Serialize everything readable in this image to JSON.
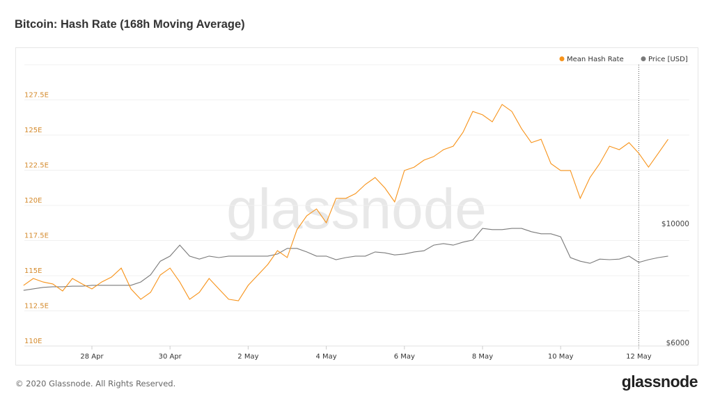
{
  "title": "Bitcoin: Hash Rate (168h Moving Average)",
  "footer": "© 2020 Glassnode. All Rights Reserved.",
  "logo": "glassnode",
  "watermark": "glassnode",
  "colors": {
    "hash_rate": "#f7931a",
    "price": "#7a7a7a",
    "left_axis_text": "#d4892a",
    "grid": "#efefef"
  },
  "chart_data": {
    "type": "line",
    "title": "Bitcoin: Hash Rate (168h Moving Average)",
    "legend": {
      "placement": "top-right",
      "entries": [
        "Mean Hash Rate",
        "Price [USD]"
      ]
    },
    "grid": true,
    "x_start": "2020-04-26T06:00",
    "x_step_hours": 6,
    "x_ticks": [
      "28 Apr",
      "30 Apr",
      "2 May",
      "4 May",
      "6 May",
      "8 May",
      "10 May",
      "12 May"
    ],
    "x_tick_dates": [
      "2020-04-28",
      "2020-04-30",
      "2020-05-02",
      "2020-05-04",
      "2020-05-06",
      "2020-05-08",
      "2020-05-10",
      "2020-05-12"
    ],
    "y_left": {
      "unit": "E",
      "range": [
        110,
        130
      ],
      "ticks": [
        110,
        112.5,
        115,
        117.5,
        120,
        122.5,
        125,
        127.5
      ],
      "tick_labels": [
        "110E",
        "112.5E",
        "115E",
        "117.5E",
        "120E",
        "122.5E",
        "125E",
        "127.5E"
      ]
    },
    "y_right": {
      "unit": "USD",
      "range": [
        6000,
        10000
      ],
      "tick_labels": [
        "$6000",
        "$10000"
      ],
      "ticks": [
        6000,
        10000
      ]
    },
    "crosshair_date": "2020-05-12T00:00",
    "series": [
      {
        "name": "Mean Hash Rate",
        "axis": "left",
        "values": [
          114.31,
          114.8,
          114.55,
          114.41,
          113.91,
          114.8,
          114.41,
          114.06,
          114.55,
          114.9,
          115.54,
          114.06,
          113.32,
          113.81,
          115.05,
          115.54,
          114.55,
          113.32,
          113.81,
          114.8,
          114.06,
          113.32,
          113.22,
          114.31,
          115.05,
          115.79,
          116.78,
          116.29,
          118.27,
          119.26,
          119.75,
          118.76,
          120.5,
          120.5,
          120.84,
          121.49,
          121.98,
          121.24,
          120.25,
          122.48,
          122.72,
          123.22,
          123.47,
          123.96,
          124.21,
          125.2,
          126.68,
          126.44,
          125.94,
          127.18,
          126.68,
          125.45,
          124.46,
          124.7,
          122.97,
          122.48,
          122.48,
          120.5,
          121.98,
          122.97,
          124.21,
          123.96,
          124.46,
          123.71,
          122.72,
          123.71,
          124.7
        ]
      },
      {
        "name": "Price [USD]",
        "axis": "right",
        "values": [
          7870,
          7920,
          7970,
          7990,
          7990,
          8010,
          8010,
          8040,
          8040,
          8040,
          8040,
          8040,
          8150,
          8390,
          8850,
          9020,
          9390,
          9020,
          8920,
          9020,
          8970,
          9020,
          9020,
          9020,
          9020,
          9020,
          9090,
          9280,
          9280,
          9160,
          9020,
          9020,
          8900,
          8970,
          9020,
          9020,
          9160,
          9130,
          9060,
          9090,
          9160,
          9200,
          9390,
          9440,
          9390,
          9490,
          9560,
          9950,
          9910,
          9910,
          9950,
          9950,
          9840,
          9770,
          9770,
          9670,
          8970,
          8850,
          8780,
          8920,
          8900,
          8920,
          9020,
          8810,
          8900,
          8970,
          9020
        ]
      }
    ]
  }
}
